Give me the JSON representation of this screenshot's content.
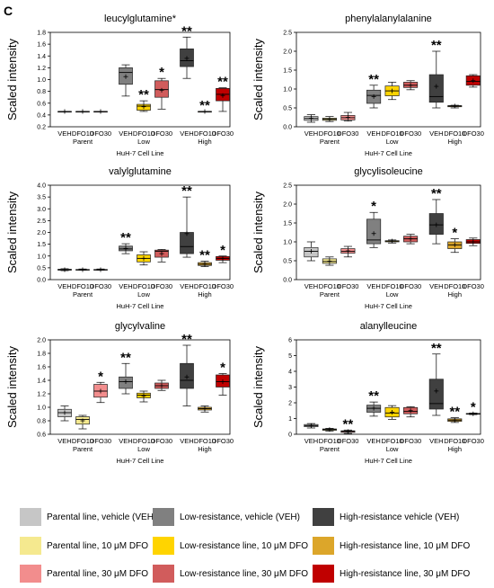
{
  "panel_letter": "C",
  "chart_data": [
    {
      "type": "box",
      "title": "leucylglutamine*",
      "ylabel": "Scaled intensity",
      "xlabel": "HuH-7 Cell Line",
      "ylim": [
        0.2,
        1.8
      ],
      "yticks": [
        "0.2",
        "0.4",
        "0.6",
        "0.8",
        "1.0",
        "1.2",
        "1.4",
        "1.6",
        "1.8"
      ],
      "tick_labels": [
        "VEH",
        "DFO10",
        "DFO30",
        "VEH",
        "DFO10",
        "DFO30",
        "VEH",
        "DFO10",
        "DFO30"
      ],
      "group_labels": [
        "Parent",
        "Low",
        "High"
      ],
      "boxes": [
        {
          "min": 0.46,
          "q1": 0.46,
          "median": 0.46,
          "q3": 0.46,
          "max": 0.46,
          "mean": 0.46,
          "sig": ""
        },
        {
          "min": 0.46,
          "q1": 0.46,
          "median": 0.46,
          "q3": 0.46,
          "max": 0.46,
          "mean": 0.46,
          "sig": ""
        },
        {
          "min": 0.46,
          "q1": 0.46,
          "median": 0.46,
          "q3": 0.46,
          "max": 0.46,
          "mean": 0.46,
          "sig": ""
        },
        {
          "min": 0.72,
          "q1": 0.92,
          "median": 1.12,
          "q3": 1.2,
          "max": 1.25,
          "mean": 1.05,
          "sig": ""
        },
        {
          "min": 0.46,
          "q1": 0.48,
          "median": 0.55,
          "q3": 0.58,
          "max": 0.64,
          "mean": 0.54,
          "sig": "**"
        },
        {
          "min": 0.5,
          "q1": 0.7,
          "median": 0.83,
          "q3": 0.98,
          "max": 1.02,
          "mean": 0.82,
          "sig": "*"
        },
        {
          "min": 1.02,
          "q1": 1.22,
          "median": 1.32,
          "q3": 1.52,
          "max": 1.72,
          "mean": 1.36,
          "sig": "**"
        },
        {
          "min": 0.46,
          "q1": 0.46,
          "median": 0.46,
          "q3": 0.46,
          "max": 0.46,
          "mean": 0.46,
          "sig": "**"
        },
        {
          "min": 0.46,
          "q1": 0.64,
          "median": 0.75,
          "q3": 0.85,
          "max": 0.86,
          "mean": 0.73,
          "sig": "**"
        }
      ]
    },
    {
      "type": "box",
      "title": "phenylalanylalanine",
      "ylabel": "Scaled intensity",
      "xlabel": "HuH-7 Cell Line",
      "ylim": [
        0,
        2.5
      ],
      "yticks": [
        "0.0",
        "0.5",
        "1.0",
        "1.5",
        "2.0",
        "2.5"
      ],
      "tick_labels": [
        "VEH",
        "DFO10",
        "DFO30",
        "VEH",
        "DFO10",
        "DFO30",
        "VEH",
        "DFO10",
        "DFO30"
      ],
      "group_labels": [
        "Parent",
        "Low",
        "High"
      ],
      "boxes": [
        {
          "min": 0.12,
          "q1": 0.17,
          "median": 0.22,
          "q3": 0.27,
          "max": 0.32,
          "mean": 0.23,
          "sig": ""
        },
        {
          "min": 0.14,
          "q1": 0.17,
          "median": 0.2,
          "q3": 0.23,
          "max": 0.27,
          "mean": 0.2,
          "sig": ""
        },
        {
          "min": 0.15,
          "q1": 0.18,
          "median": 0.24,
          "q3": 0.3,
          "max": 0.38,
          "mean": 0.25,
          "sig": ""
        },
        {
          "min": 0.5,
          "q1": 0.62,
          "median": 0.83,
          "q3": 0.97,
          "max": 1.1,
          "mean": 0.8,
          "sig": "**"
        },
        {
          "min": 0.72,
          "q1": 0.82,
          "median": 0.95,
          "q3": 1.08,
          "max": 1.18,
          "mean": 0.95,
          "sig": ""
        },
        {
          "min": 0.98,
          "q1": 1.04,
          "median": 1.1,
          "q3": 1.18,
          "max": 1.22,
          "mean": 1.1,
          "sig": ""
        },
        {
          "min": 0.5,
          "q1": 0.65,
          "median": 0.8,
          "q3": 1.38,
          "max": 2.0,
          "mean": 1.07,
          "sig": "**"
        },
        {
          "min": 0.5,
          "q1": 0.53,
          "median": 0.55,
          "q3": 0.56,
          "max": 0.57,
          "mean": 0.55,
          "sig": ""
        },
        {
          "min": 1.05,
          "q1": 1.1,
          "median": 1.2,
          "q3": 1.35,
          "max": 1.38,
          "mean": 1.22,
          "sig": ""
        }
      ]
    },
    {
      "type": "box",
      "title": "valylglutamine",
      "ylabel": "Scaled intensity",
      "xlabel": "HuH-7 Cell Line",
      "ylim": [
        0,
        4
      ],
      "yticks": [
        "0.0",
        "0.5",
        "1.0",
        "1.5",
        "2.0",
        "2.5",
        "3.0",
        "3.5",
        "4.0"
      ],
      "tick_labels": [
        "VEH",
        "DFO10",
        "DFO30",
        "VEH",
        "DFO10",
        "DFO30",
        "VEH",
        "DFO10",
        "DFO30"
      ],
      "group_labels": [
        "Parent",
        "Low",
        "High"
      ],
      "boxes": [
        {
          "min": 0.38,
          "q1": 0.4,
          "median": 0.42,
          "q3": 0.44,
          "max": 0.46,
          "mean": 0.42,
          "sig": ""
        },
        {
          "min": 0.4,
          "q1": 0.41,
          "median": 0.42,
          "q3": 0.43,
          "max": 0.45,
          "mean": 0.42,
          "sig": ""
        },
        {
          "min": 0.4,
          "q1": 0.41,
          "median": 0.42,
          "q3": 0.43,
          "max": 0.45,
          "mean": 0.42,
          "sig": ""
        },
        {
          "min": 1.1,
          "q1": 1.22,
          "median": 1.3,
          "q3": 1.42,
          "max": 1.52,
          "mean": 1.32,
          "sig": "**"
        },
        {
          "min": 0.62,
          "q1": 0.75,
          "median": 0.9,
          "q3": 1.05,
          "max": 1.18,
          "mean": 0.9,
          "sig": ""
        },
        {
          "min": 0.75,
          "q1": 0.95,
          "median": 1.2,
          "q3": 1.25,
          "max": 1.28,
          "mean": 1.1,
          "sig": ""
        },
        {
          "min": 0.95,
          "q1": 1.1,
          "median": 1.4,
          "q3": 2.0,
          "max": 3.5,
          "mean": 1.95,
          "sig": "**"
        },
        {
          "min": 0.55,
          "q1": 0.6,
          "median": 0.65,
          "q3": 0.72,
          "max": 0.78,
          "mean": 0.66,
          "sig": "**"
        },
        {
          "min": 0.72,
          "q1": 0.82,
          "median": 0.9,
          "q3": 0.98,
          "max": 1.0,
          "mean": 0.9,
          "sig": "*"
        }
      ]
    },
    {
      "type": "box",
      "title": "glycylisoleucine",
      "ylabel": "Scaled intensity",
      "xlabel": "HuH-7 Cell Line",
      "ylim": [
        0,
        2.5
      ],
      "yticks": [
        "0.0",
        "0.5",
        "1.0",
        "1.5",
        "2.0",
        "2.5"
      ],
      "tick_labels": [
        "VEH",
        "DFO10",
        "DFO30",
        "VEH",
        "DFO10",
        "DFO30",
        "VEH",
        "DFO10",
        "DFO30"
      ],
      "group_labels": [
        "Parent",
        "Low",
        "High"
      ],
      "boxes": [
        {
          "min": 0.5,
          "q1": 0.6,
          "median": 0.75,
          "q3": 0.85,
          "max": 1.0,
          "mean": 0.75,
          "sig": ""
        },
        {
          "min": 0.38,
          "q1": 0.43,
          "median": 0.48,
          "q3": 0.55,
          "max": 0.6,
          "mean": 0.49,
          "sig": ""
        },
        {
          "min": 0.6,
          "q1": 0.7,
          "median": 0.75,
          "q3": 0.82,
          "max": 0.88,
          "mean": 0.76,
          "sig": ""
        },
        {
          "min": 0.85,
          "q1": 0.95,
          "median": 1.05,
          "q3": 1.6,
          "max": 1.78,
          "mean": 1.22,
          "sig": "*"
        },
        {
          "min": 0.97,
          "q1": 1.0,
          "median": 1.02,
          "q3": 1.03,
          "max": 1.05,
          "mean": 1.02,
          "sig": ""
        },
        {
          "min": 0.95,
          "q1": 1.0,
          "median": 1.08,
          "q3": 1.15,
          "max": 1.2,
          "mean": 1.08,
          "sig": ""
        },
        {
          "min": 0.95,
          "q1": 1.2,
          "median": 1.45,
          "q3": 1.75,
          "max": 2.12,
          "mean": 1.45,
          "sig": "**"
        },
        {
          "min": 0.72,
          "q1": 0.82,
          "median": 0.92,
          "q3": 1.0,
          "max": 1.08,
          "mean": 0.92,
          "sig": "*"
        },
        {
          "min": 0.9,
          "q1": 0.96,
          "median": 1.0,
          "q3": 1.06,
          "max": 1.1,
          "mean": 1.0,
          "sig": ""
        }
      ]
    },
    {
      "type": "box",
      "title": "glycylvaline",
      "ylabel": "Scaled intensity",
      "xlabel": "HuH-7 Cell Line",
      "ylim": [
        0.6,
        2.0
      ],
      "yticks": [
        "0.6",
        "0.8",
        "1.0",
        "1.2",
        "1.4",
        "1.6",
        "1.8",
        "2.0"
      ],
      "tick_labels": [
        "VEH",
        "DFO10",
        "DFO30",
        "VEH",
        "DFO10",
        "DFO30",
        "VEH",
        "DFO10",
        "DFO30"
      ],
      "group_labels": [
        "Parent",
        "Low",
        "High"
      ],
      "boxes": [
        {
          "min": 0.8,
          "q1": 0.86,
          "median": 0.92,
          "q3": 0.97,
          "max": 1.02,
          "mean": 0.92,
          "sig": ""
        },
        {
          "min": 0.68,
          "q1": 0.75,
          "median": 0.82,
          "q3": 0.86,
          "max": 0.88,
          "mean": 0.8,
          "sig": ""
        },
        {
          "min": 1.07,
          "q1": 1.15,
          "median": 1.24,
          "q3": 1.34,
          "max": 1.37,
          "mean": 1.24,
          "sig": "*"
        },
        {
          "min": 1.2,
          "q1": 1.28,
          "median": 1.38,
          "q3": 1.45,
          "max": 1.65,
          "mean": 1.38,
          "sig": "**"
        },
        {
          "min": 1.08,
          "q1": 1.14,
          "median": 1.18,
          "q3": 1.21,
          "max": 1.24,
          "mean": 1.17,
          "sig": ""
        },
        {
          "min": 1.25,
          "q1": 1.28,
          "median": 1.32,
          "q3": 1.36,
          "max": 1.4,
          "mean": 1.32,
          "sig": ""
        },
        {
          "min": 1.02,
          "q1": 1.28,
          "median": 1.4,
          "q3": 1.65,
          "max": 1.92,
          "mean": 1.45,
          "sig": "**"
        },
        {
          "min": 0.93,
          "q1": 0.96,
          "median": 0.98,
          "q3": 1.0,
          "max": 1.02,
          "mean": 0.98,
          "sig": ""
        },
        {
          "min": 1.18,
          "q1": 1.3,
          "median": 1.38,
          "q3": 1.48,
          "max": 1.5,
          "mean": 1.38,
          "sig": "*"
        }
      ]
    },
    {
      "type": "box",
      "title": "alanylleucine",
      "ylabel": "Scaled intensity",
      "xlabel": "HuH-7 Cell Line",
      "ylim": [
        0,
        6
      ],
      "yticks": [
        "0",
        "1",
        "2",
        "3",
        "4",
        "5",
        "6"
      ],
      "tick_labels": [
        "VEH",
        "DFO10",
        "DFO30",
        "VEH",
        "DFO10",
        "DFO30",
        "VEH",
        "DFO10",
        "DFO30"
      ],
      "group_labels": [
        "Parent",
        "Low",
        "High"
      ],
      "boxes": [
        {
          "min": 0.4,
          "q1": 0.48,
          "median": 0.55,
          "q3": 0.62,
          "max": 0.68,
          "mean": 0.55,
          "sig": ""
        },
        {
          "min": 0.2,
          "q1": 0.25,
          "median": 0.3,
          "q3": 0.34,
          "max": 0.38,
          "mean": 0.3,
          "sig": ""
        },
        {
          "min": 0.05,
          "q1": 0.12,
          "median": 0.18,
          "q3": 0.22,
          "max": 0.27,
          "mean": 0.17,
          "sig": "**"
        },
        {
          "min": 1.15,
          "q1": 1.4,
          "median": 1.65,
          "q3": 1.85,
          "max": 2.05,
          "mean": 1.65,
          "sig": "**"
        },
        {
          "min": 0.95,
          "q1": 1.1,
          "median": 1.35,
          "q3": 1.7,
          "max": 1.82,
          "mean": 1.4,
          "sig": ""
        },
        {
          "min": 1.1,
          "q1": 1.3,
          "median": 1.45,
          "q3": 1.7,
          "max": 1.75,
          "mean": 1.5,
          "sig": ""
        },
        {
          "min": 1.2,
          "q1": 1.6,
          "median": 1.95,
          "q3": 3.5,
          "max": 5.1,
          "mean": 2.75,
          "sig": "**"
        },
        {
          "min": 0.75,
          "q1": 0.82,
          "median": 0.9,
          "q3": 0.98,
          "max": 1.05,
          "mean": 0.9,
          "sig": "**"
        },
        {
          "min": 1.25,
          "q1": 1.28,
          "median": 1.3,
          "q3": 1.32,
          "max": 1.35,
          "mean": 1.3,
          "sig": "*"
        }
      ]
    }
  ],
  "colors": [
    "#c6c6c6",
    "#f5e98f",
    "#f28d8d",
    "#808080",
    "#ffd400",
    "#d15c5c",
    "#404040",
    "#dca62a",
    "#c00000"
  ],
  "legend": [
    {
      "label": "Parental line, vehicle (VEH)",
      "color": "#c6c6c6"
    },
    {
      "label": "Low-resistance, vehicle (VEH)",
      "color": "#808080"
    },
    {
      "label": "High-resistance vehicle (VEH)",
      "color": "#404040"
    },
    {
      "label": "Parental line, 10 μM DFO",
      "color": "#f5e98f"
    },
    {
      "label": "Low-resistance line, 10 μM DFO",
      "color": "#ffd400"
    },
    {
      "label": "High-resistance line, 10 μM DFO",
      "color": "#dca62a"
    },
    {
      "label": "Parental line, 30 μM DFO",
      "color": "#f28d8d"
    },
    {
      "label": "Low-resistance line, 30 μM DFO",
      "color": "#d15c5c"
    },
    {
      "label": "High-resistance line, 30 μM DFO",
      "color": "#c00000"
    }
  ]
}
